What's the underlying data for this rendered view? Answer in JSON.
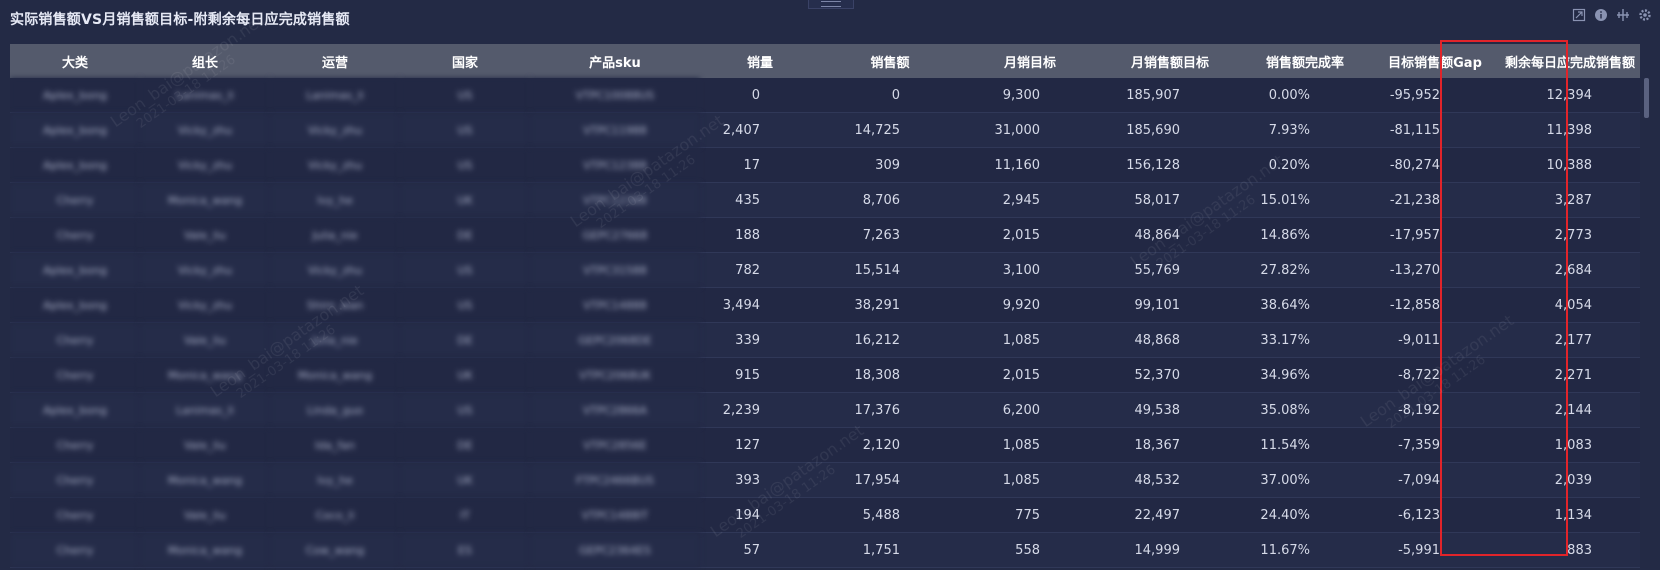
{
  "title": "实际销售额VS月销售额目标-附剩余每日应完成销售额",
  "toolbar": {
    "icons": [
      "expand-icon",
      "info-icon",
      "split-icon",
      "settings-icon"
    ]
  },
  "table": {
    "columns": [
      "大类",
      "组长",
      "运营",
      "国家",
      "产品sku",
      "销量",
      "销售额",
      "月销目标",
      "月销售额目标",
      "销售额完成率",
      "目标销售额Gap",
      "剩余每日应完成销售额"
    ],
    "rows": [
      [
        "Aplex_bong",
        "Lanimas_li",
        "Lanimas_li",
        "US",
        "VTPC10088US",
        "0",
        "0",
        "9,300",
        "185,907",
        "0.00%",
        "-95,952",
        "12,394"
      ],
      [
        "Aplex_bong",
        "Vicky_zhu",
        "Vicky_zhu",
        "US",
        "VTPC11988",
        "2,407",
        "14,725",
        "31,000",
        "185,690",
        "7.93%",
        "-81,115",
        "11,398"
      ],
      [
        "Aplex_bong",
        "Vicky_zhu",
        "Vicky_zhu",
        "US",
        "VTPC12388",
        "17",
        "309",
        "11,160",
        "156,128",
        "0.20%",
        "-80,274",
        "10,388"
      ],
      [
        "Cherry",
        "Monica_wang",
        "Ivy_he",
        "UK",
        "VTPC12388",
        "435",
        "8,706",
        "2,945",
        "58,017",
        "15.01%",
        "-21,238",
        "3,287"
      ],
      [
        "Cherry",
        "Vale_liu",
        "Julia_nie",
        "DE",
        "GEPC27668",
        "188",
        "7,263",
        "2,015",
        "48,864",
        "14.86%",
        "-17,957",
        "2,773"
      ],
      [
        "Aplex_bong",
        "Vicky_zhu",
        "Vicky_zhu",
        "US",
        "VTPC31588",
        "782",
        "15,514",
        "3,100",
        "55,769",
        "27.82%",
        "-13,270",
        "2,684"
      ],
      [
        "Aplex_bong",
        "Vicky_zhu",
        "Shirn_wan",
        "US",
        "VTPC14888",
        "3,494",
        "38,291",
        "9,920",
        "99,101",
        "38.64%",
        "-12,858",
        "4,054"
      ],
      [
        "Cherry",
        "Vale_liu",
        "Julia_nie",
        "DE",
        "GEPC2068DE",
        "339",
        "16,212",
        "1,085",
        "48,868",
        "33.17%",
        "-9,011",
        "2,177"
      ],
      [
        "Cherry",
        "Monica_wang",
        "Monica_wang",
        "UK",
        "VTPC2068UK",
        "915",
        "18,308",
        "2,015",
        "52,370",
        "34.96%",
        "-8,722",
        "2,271"
      ],
      [
        "Aplex_bong",
        "Lanimas_li",
        "Linda_guo",
        "US",
        "VTPC2866A",
        "2,239",
        "17,376",
        "6,200",
        "49,538",
        "35.08%",
        "-8,192",
        "2,144"
      ],
      [
        "Cherry",
        "Vale_liu",
        "Ida_fan",
        "DE",
        "VTPC2856E",
        "127",
        "2,120",
        "1,085",
        "18,367",
        "11.54%",
        "-7,359",
        "1,083"
      ],
      [
        "Cherry",
        "Monica_wang",
        "Ivy_he",
        "UK",
        "FTPC2466BUS",
        "393",
        "17,954",
        "1,085",
        "48,532",
        "37.00%",
        "-7,094",
        "2,039"
      ],
      [
        "Cherry",
        "Vale_liu",
        "Coco_li",
        "IT",
        "VTPC1488IT",
        "194",
        "5,488",
        "775",
        "22,497",
        "24.40%",
        "-6,123",
        "1,134"
      ],
      [
        "Cherry",
        "Monica_wang",
        "Cow_wang",
        "ES",
        "GEPC2364ES",
        "57",
        "1,751",
        "558",
        "14,999",
        "11.67%",
        "-5,991",
        "883"
      ]
    ]
  },
  "watermark": {
    "text": "Leon_bai@patazon.net",
    "date": "2021-03-18 11:26"
  },
  "highlight_color": "#e1242a"
}
